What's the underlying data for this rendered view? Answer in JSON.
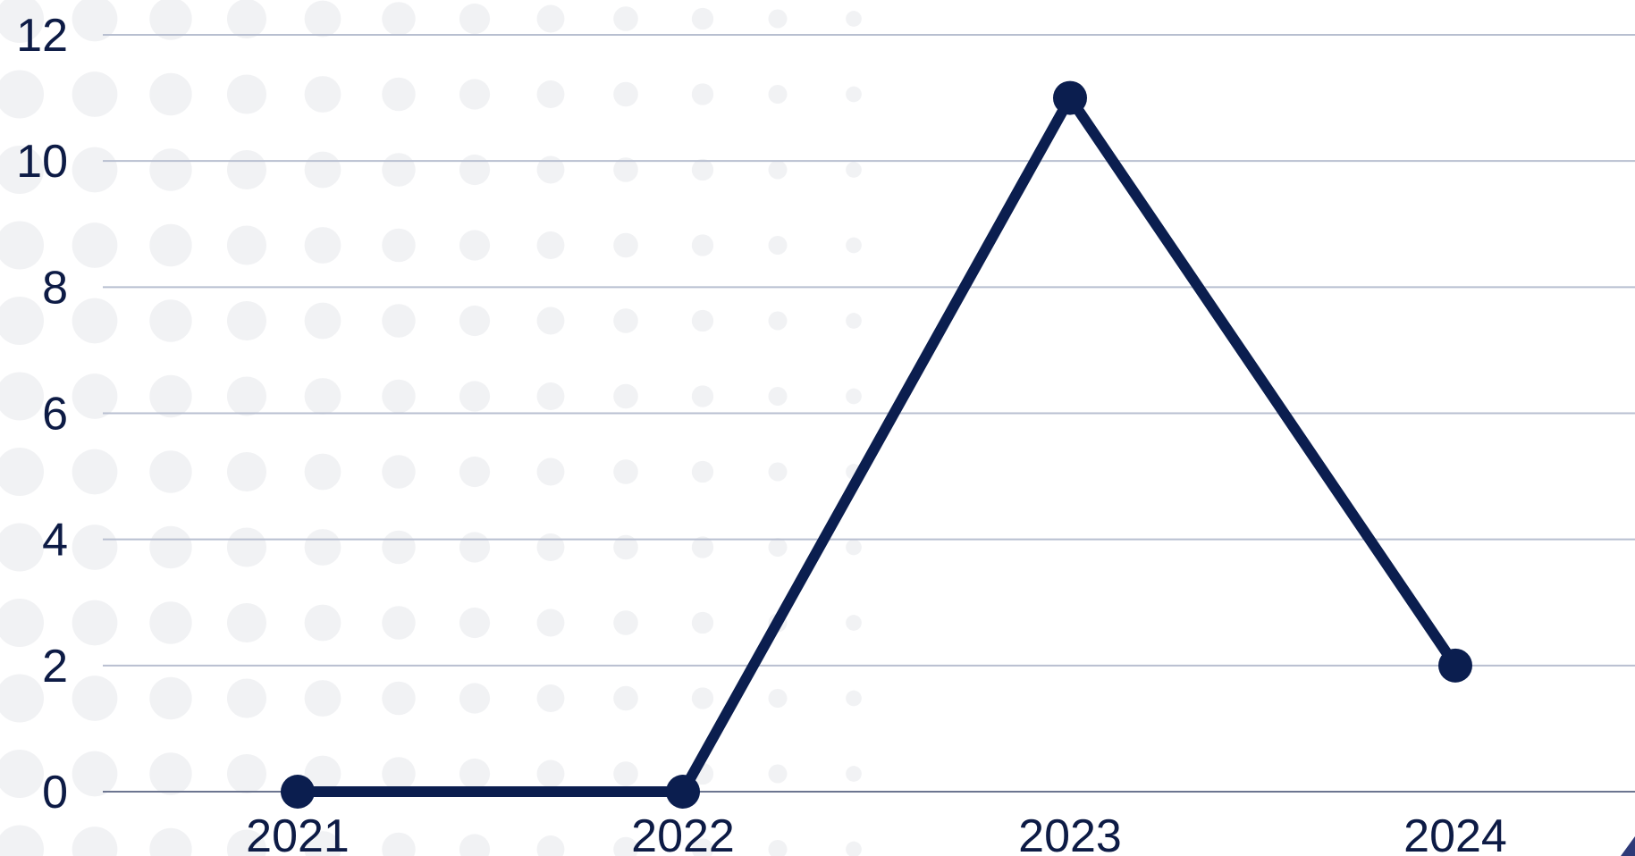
{
  "colors": {
    "line": "#0b1e4f",
    "marker": "#0b1e4f",
    "grid": "#b8bfd0",
    "baseline": "#6c7590",
    "tick_text": "#0d1b45",
    "dot_pattern": "#f1f2f4",
    "corner_accent": "#2e3a78",
    "background": "#ffffff"
  },
  "chart_data": {
    "type": "line",
    "categories": [
      "2021",
      "2022",
      "2023",
      "2024"
    ],
    "series": [
      {
        "values": [
          0,
          0,
          11,
          2
        ]
      }
    ],
    "title": "",
    "xlabel": "",
    "ylabel": "",
    "ylim": [
      0,
      12
    ],
    "yticks": [
      0,
      2,
      4,
      6,
      8,
      10,
      12
    ],
    "ytick_labels": [
      "0",
      "2",
      "4",
      "6",
      "8",
      "10",
      "12"
    ],
    "grid": true,
    "legend": "none",
    "markers": true
  }
}
